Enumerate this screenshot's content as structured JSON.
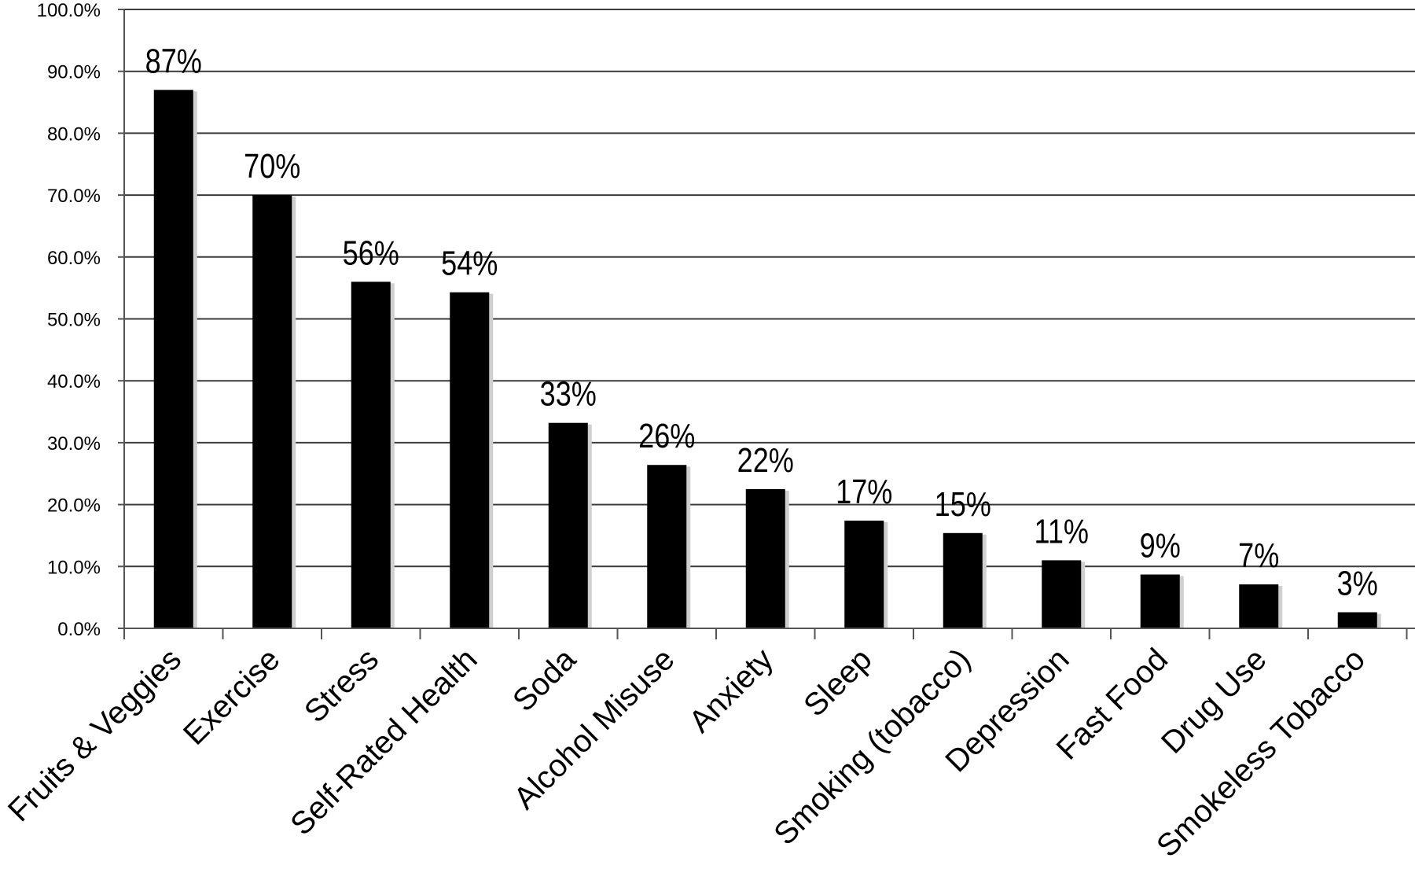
{
  "chart_data": {
    "type": "bar",
    "title": "",
    "xlabel": "",
    "ylabel": "",
    "ylim": [
      0,
      100
    ],
    "grid": true,
    "legend": "none",
    "bar_color": "#000000",
    "grid_color": "#3a3a3a",
    "categories": [
      "Fruits & Veggies",
      "Exercise",
      "Stress",
      "Self-Rated Health",
      "Soda",
      "Alcohol Misuse",
      "Anxiety",
      "Sleep",
      "Smoking (tobacco)",
      "Depression",
      "Fast Food",
      "Drug Use",
      "Smokeless Tobacco"
    ],
    "values": [
      87,
      70,
      56,
      54.3,
      33.2,
      26.4,
      22.5,
      17.4,
      15.4,
      11,
      8.7,
      7.1,
      2.6
    ],
    "data_labels": [
      "87%",
      "70%",
      "56%",
      "54%",
      "33%",
      "26%",
      "22%",
      "17%",
      "15%",
      "11%",
      "9%",
      "7%",
      "3%"
    ],
    "y_ticks": [
      0,
      10,
      20,
      30,
      40,
      50,
      60,
      70,
      80,
      90,
      100
    ],
    "y_tick_labels": [
      "0.0%",
      "10.0%",
      "20.0%",
      "30.0%",
      "40.0%",
      "50.0%",
      "60.0%",
      "70.0%",
      "80.0%",
      "90.0%",
      "100.0%"
    ]
  }
}
